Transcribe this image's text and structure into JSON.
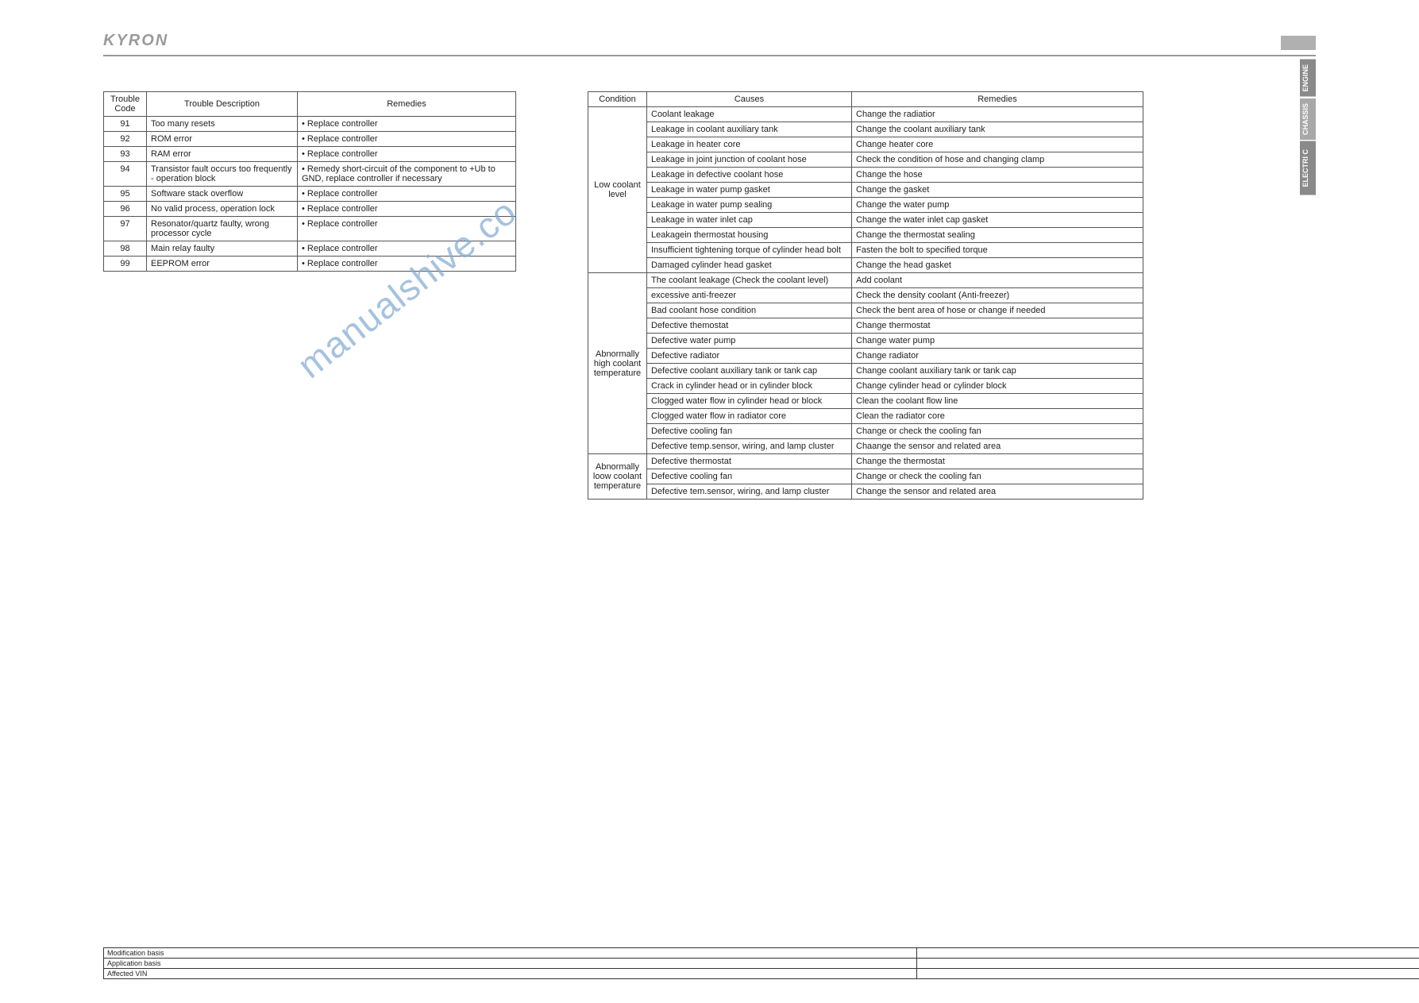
{
  "header": {
    "brand": "KYRON"
  },
  "watermark": "manualshive.co",
  "side_tabs": {
    "engine": "ENGINE",
    "chassis": "CHASSIS",
    "electri": "ELECTRI C"
  },
  "left_table": {
    "columns": [
      "Trouble Code",
      "Trouble Description",
      "Remedies"
    ],
    "rows": [
      {
        "code": "91",
        "desc": "Too many resets",
        "rem": "Replace controller"
      },
      {
        "code": "92",
        "desc": "ROM error",
        "rem": "Replace controller"
      },
      {
        "code": "93",
        "desc": "RAM error",
        "rem": "Replace controller"
      },
      {
        "code": "94",
        "desc": "Transistor fault occurs too frequently - operation block",
        "rem": "Remedy short-circuit of the component to +Ub to GND, replace controller if necessary"
      },
      {
        "code": "95",
        "desc": "Software stack overflow",
        "rem": "Replace controller"
      },
      {
        "code": "96",
        "desc": "No valid process, operation lock",
        "rem": "Replace controller"
      },
      {
        "code": "97",
        "desc": "Resonator/quartz faulty, wrong processor cycle",
        "rem": "Replace controller"
      },
      {
        "code": "98",
        "desc": "Main relay faulty",
        "rem": "Replace controller"
      },
      {
        "code": "99",
        "desc": "EEPROM error",
        "rem": "Replace controller"
      }
    ],
    "col_widths": [
      "54px",
      "190px",
      "auto"
    ]
  },
  "right_table": {
    "columns": [
      "Condition",
      "Causes",
      "Remedies"
    ],
    "groups": [
      {
        "condition": "Low coolant level",
        "rows": [
          {
            "cause": "Coolant leakage",
            "rem": "Change the radiatior"
          },
          {
            "cause": "Leakage in coolant auxiliary tank",
            "rem": "Change the coolant auxiliary tank"
          },
          {
            "cause": "Leakage in heater core",
            "rem": "Change heater core"
          },
          {
            "cause": "Leakage in joint junction of coolant hose",
            "rem": "Check the condition of hose and changing clamp"
          },
          {
            "cause": "Leakage in defective coolant hose",
            "rem": "Change the hose"
          },
          {
            "cause": "Leakage in water pump gasket",
            "rem": "Change the gasket"
          },
          {
            "cause": "Leakage in water pump sealing",
            "rem": "Change the water pump"
          },
          {
            "cause": "Leakage in water inlet cap",
            "rem": "Change the water inlet cap gasket"
          },
          {
            "cause": "Leakagein thermostat housing",
            "rem": "Change the thermostat sealing"
          },
          {
            "cause": "Insufficient tightening torque of cylinder head bolt",
            "rem": "Fasten the bolt to specified torque"
          },
          {
            "cause": "Damaged cylinder head gasket",
            "rem": "Change the head gasket"
          }
        ]
      },
      {
        "condition": "Abnormally high coolant temperature",
        "rows": [
          {
            "cause": "The coolant leakage (Check the coolant level)",
            "rem": "Add coolant"
          },
          {
            "cause": "excessive anti-freezer",
            "rem": "Check the density coolant (Anti-freezer)"
          },
          {
            "cause": "Bad coolant hose condition",
            "rem": "Check the bent area of hose or change if needed"
          },
          {
            "cause": "Defective themostat",
            "rem": "Change thermostat"
          },
          {
            "cause": "Defective water pump",
            "rem": "Change water pump"
          },
          {
            "cause": "Defective radiator",
            "rem": "Change radiator"
          },
          {
            "cause": "Defective coolant auxiliary tank or tank cap",
            "rem": "Change coolant auxiliary tank or tank cap"
          },
          {
            "cause": "Crack in cylinder head or in cylinder block",
            "rem": "Change cylinder head or cylinder block"
          },
          {
            "cause": "Clogged water flow in cylinder head or block",
            "rem": "Clean the coolant flow line"
          },
          {
            "cause": "Clogged water flow in radiator core",
            "rem": "Clean the radiator core"
          },
          {
            "cause": "Defective cooling fan",
            "rem": "Change or check the cooling fan"
          },
          {
            "cause": "Defective temp.sensor, wiring, and lamp cluster",
            "rem": "Chaange the sensor and related area"
          }
        ]
      },
      {
        "condition": "Abnormally loow coolant temperature",
        "rows": [
          {
            "cause": "Defective thermostat",
            "rem": "Change the thermostat"
          },
          {
            "cause": "Defective cooling fan",
            "rem": "Change or check the cooling fan"
          },
          {
            "cause": "Defective tem.sensor, wiring, and lamp cluster",
            "rem": "Change the sensor and related area"
          }
        ]
      }
    ],
    "col_widths": [
      "74px",
      "258px",
      "auto"
    ]
  },
  "footer": {
    "rows": [
      "Modification basis",
      "Application basis",
      "Affected VIN"
    ]
  },
  "colors": {
    "border": "#555555",
    "text": "#222222",
    "brand": "#9a9a9a",
    "tab_dark": "#8a8a8a",
    "tab_light": "#a8a8a8",
    "watermark": "#7fa9d4"
  }
}
